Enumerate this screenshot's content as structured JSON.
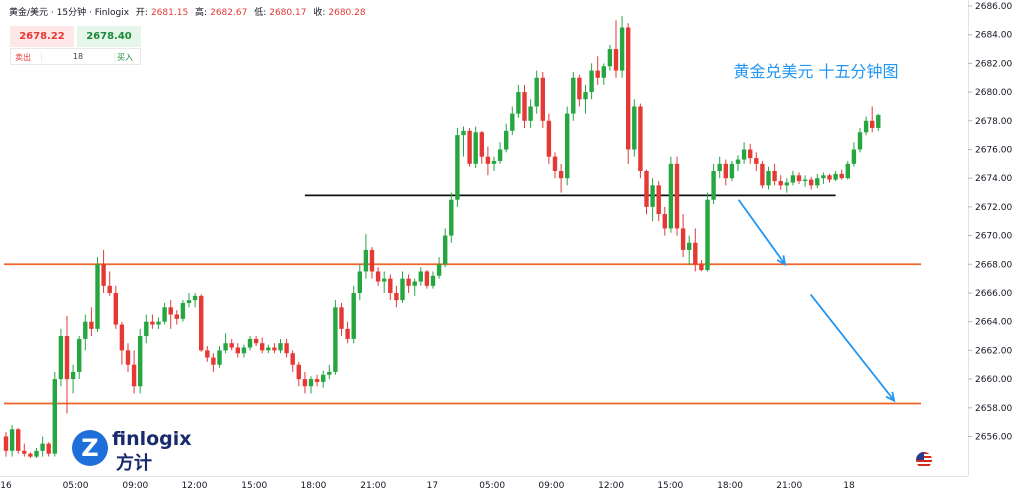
{
  "header": {
    "symbol": "黄金/美元",
    "sep1": "·",
    "timeframe": "15分钟",
    "sep2": "·",
    "source": "Finlogix",
    "open_label": "开:",
    "open": "2681.15",
    "high_label": "高:",
    "high": "2682.67",
    "low_label": "低:",
    "low": "2680.17",
    "close_label": "收:",
    "close": "2680.28"
  },
  "trade": {
    "sell_price": "2678.22",
    "buy_price": "2678.40",
    "sell_label": "卖出",
    "buy_label": "买入",
    "quantity": "18"
  },
  "logo": {
    "brand": "finlogix",
    "brand_cn": "方计",
    "mark": "Z"
  },
  "colors": {
    "up": "#26a641",
    "down": "#e53935",
    "support": "#f0642a",
    "pivot": "#111111",
    "arrow": "#2196f3",
    "annotation": "#2196f3"
  },
  "chart_data": {
    "type": "candlestick",
    "title": "",
    "annotation": "黄金兑美元 十五分钟图",
    "y_axis": {
      "min": 2654.5,
      "max": 2686.0,
      "ticks": [
        "2686.00",
        "2684.00",
        "2682.00",
        "2680.00",
        "2678.00",
        "2676.00",
        "2674.00",
        "2672.00",
        "2670.00",
        "2668.00",
        "2666.00",
        "2664.00",
        "2662.00",
        "2660.00",
        "2658.00",
        "2656.00"
      ],
      "tick_values": [
        2686,
        2684,
        2682,
        2680,
        2678,
        2676,
        2674,
        2672,
        2670,
        2668,
        2666,
        2664,
        2662,
        2660,
        2658,
        2656
      ]
    },
    "x_axis": {
      "ticks": [
        "16",
        "05:00",
        "09:00",
        "12:00",
        "15:00",
        "18:00",
        "21:00",
        "17",
        "05:00",
        "09:00",
        "12:00",
        "15:00",
        "18:00",
        "21:00",
        "18"
      ],
      "tick_bars": [
        0,
        11.4,
        21.2,
        30.9,
        40.7,
        50.4,
        60.2,
        69.9,
        79.7,
        89.4,
        99.2,
        108.9,
        118.7,
        128.4,
        138.2
      ]
    },
    "horizontal_lines": [
      {
        "name": "pivot",
        "price": 2672.8,
        "from_bar": 49,
        "to_bar": 136,
        "color": "#111111"
      },
      {
        "name": "resistance-support",
        "price": 2668.0,
        "from_bar": -2,
        "to_bar": 150,
        "color": "#f0642a"
      },
      {
        "name": "lower-support",
        "price": 2658.3,
        "from_bar": -2,
        "to_bar": 150,
        "color": "#f0642a"
      }
    ],
    "arrows": [
      {
        "from_bar": 120.1,
        "from_price": 2672.5,
        "to_bar": 127.7,
        "to_price": 2668.0
      },
      {
        "from_bar": 131.9,
        "from_price": 2665.9,
        "to_bar": 145.6,
        "to_price": 2658.5
      }
    ],
    "candles": [
      [
        2656,
        2656.3,
        2654.6,
        2655
      ],
      [
        2655,
        2656.8,
        2654.6,
        2656.5
      ],
      [
        2656.5,
        2656.6,
        2654.8,
        2655
      ],
      [
        2655,
        2655.5,
        2654.6,
        2654.8
      ],
      [
        2654.8,
        2654.9,
        2654.5,
        2654.6
      ],
      [
        2654.6,
        2655.2,
        2654.5,
        2655
      ],
      [
        2655,
        2656,
        2654.6,
        2655.5
      ],
      [
        2655.5,
        2655.6,
        2654.6,
        2654.8
      ],
      [
        2654.8,
        2660.5,
        2654.6,
        2660
      ],
      [
        2660,
        2663.5,
        2659.5,
        2663
      ],
      [
        2663,
        2664.4,
        2657.6,
        2660
      ],
      [
        2660,
        2661,
        2659,
        2660.5
      ],
      [
        2660.5,
        2663,
        2660,
        2662.8
      ],
      [
        2662.8,
        2664.5,
        2662,
        2664
      ],
      [
        2664,
        2665,
        2663,
        2663.5
      ],
      [
        2663.5,
        2668.5,
        2663.3,
        2668
      ],
      [
        2668,
        2669,
        2666,
        2666.5
      ],
      [
        2666.5,
        2667.5,
        2665.8,
        2666
      ],
      [
        2666,
        2666.5,
        2663.5,
        2663.8
      ],
      [
        2663.8,
        2664,
        2661,
        2662
      ],
      [
        2662,
        2662.5,
        2660.5,
        2661
      ],
      [
        2661,
        2662,
        2659,
        2659.5
      ],
      [
        2659.5,
        2663.5,
        2659,
        2663
      ],
      [
        2663,
        2664.5,
        2662.5,
        2664
      ],
      [
        2664,
        2664.5,
        2663.5,
        2663.8
      ],
      [
        2663.8,
        2664.3,
        2663.5,
        2664
      ],
      [
        2664,
        2665.3,
        2663.8,
        2665
      ],
      [
        2665,
        2665.5,
        2663.5,
        2664.5
      ],
      [
        2664.5,
        2664.8,
        2663.8,
        2664.2
      ],
      [
        2664.2,
        2665.5,
        2664,
        2665.3
      ],
      [
        2665.3,
        2666,
        2665,
        2665.5
      ],
      [
        2665.5,
        2666,
        2665,
        2665.8
      ],
      [
        2665.8,
        2665.9,
        2661.9,
        2662
      ],
      [
        2662,
        2662.3,
        2661.2,
        2661.5
      ],
      [
        2661.5,
        2661.8,
        2660.5,
        2661
      ],
      [
        2661,
        2662.3,
        2660.8,
        2662
      ],
      [
        2662,
        2663.2,
        2661.8,
        2662.5
      ],
      [
        2662.5,
        2662.8,
        2662,
        2662.2
      ],
      [
        2662.2,
        2662.5,
        2661.5,
        2661.8
      ],
      [
        2661.8,
        2662.4,
        2661.5,
        2662.2
      ],
      [
        2662.2,
        2663,
        2662,
        2662.8
      ],
      [
        2662.8,
        2663,
        2662.3,
        2662.5
      ],
      [
        2662.5,
        2662.9,
        2661.8,
        2662
      ],
      [
        2662,
        2662.4,
        2661.8,
        2662.2
      ],
      [
        2662.2,
        2662.5,
        2661.8,
        2662
      ],
      [
        2662,
        2662.8,
        2661.8,
        2662.5
      ],
      [
        2662.5,
        2662.8,
        2661.5,
        2661.8
      ],
      [
        2661.8,
        2662,
        2660.5,
        2661
      ],
      [
        2661,
        2661.2,
        2659.5,
        2660
      ],
      [
        2660,
        2660.5,
        2659,
        2659.5
      ],
      [
        2659.5,
        2660.2,
        2659,
        2660
      ],
      [
        2660,
        2660.3,
        2659.5,
        2659.8
      ],
      [
        2659.8,
        2660.6,
        2659.4,
        2660.3
      ],
      [
        2660.3,
        2661,
        2660,
        2660.5
      ],
      [
        2660.5,
        2665.5,
        2660.3,
        2665
      ],
      [
        2665,
        2665.3,
        2663,
        2663.5
      ],
      [
        2663.5,
        2664,
        2662.5,
        2662.8
      ],
      [
        2662.8,
        2666.5,
        2662.5,
        2666
      ],
      [
        2666,
        2668,
        2665.5,
        2667.5
      ],
      [
        2667.5,
        2670.1,
        2667,
        2669
      ],
      [
        2669,
        2669.2,
        2667,
        2667.5
      ],
      [
        2667.5,
        2667.8,
        2666.5,
        2666.8
      ],
      [
        2666.8,
        2667.5,
        2666,
        2667
      ],
      [
        2667,
        2667.3,
        2665.5,
        2666
      ],
      [
        2666,
        2666.5,
        2665,
        2665.5
      ],
      [
        2665.5,
        2667.5,
        2665.3,
        2667
      ],
      [
        2667,
        2667.3,
        2666,
        2666.5
      ],
      [
        2666.5,
        2667,
        2665.8,
        2666.8
      ],
      [
        2666.8,
        2667.8,
        2666.5,
        2667.5
      ],
      [
        2667.5,
        2667.6,
        2666.3,
        2666.5
      ],
      [
        2666.5,
        2667.5,
        2666.3,
        2667.2
      ],
      [
        2667.2,
        2668.5,
        2667,
        2668
      ],
      [
        2668,
        2670.5,
        2667.8,
        2670
      ],
      [
        2670,
        2673,
        2669.5,
        2672.5
      ],
      [
        2672.5,
        2677.5,
        2672,
        2677
      ],
      [
        2677,
        2677.6,
        2675.5,
        2677.3
      ],
      [
        2677.3,
        2677.5,
        2674.8,
        2675
      ],
      [
        2675,
        2677.6,
        2674.7,
        2677.2
      ],
      [
        2677.2,
        2677.3,
        2675,
        2675.5
      ],
      [
        2675.5,
        2676.2,
        2674.2,
        2675
      ],
      [
        2675,
        2675.5,
        2674.5,
        2675.2
      ],
      [
        2675.2,
        2676.5,
        2675,
        2676
      ],
      [
        2676,
        2677.8,
        2675.8,
        2677.3
      ],
      [
        2677.3,
        2679,
        2677,
        2678.5
      ],
      [
        2678.5,
        2680.5,
        2678.2,
        2680
      ],
      [
        2680,
        2680.5,
        2677.5,
        2678
      ],
      [
        2678,
        2679.5,
        2677.5,
        2679
      ],
      [
        2679,
        2681.5,
        2678.5,
        2681
      ],
      [
        2681,
        2681.4,
        2677.5,
        2678
      ],
      [
        2678,
        2678.5,
        2675,
        2675.5
      ],
      [
        2675.5,
        2675.8,
        2674,
        2674.5
      ],
      [
        2674.5,
        2675,
        2673,
        2674
      ],
      [
        2674,
        2679,
        2673.5,
        2678.5
      ],
      [
        2678.5,
        2681.4,
        2678,
        2681
      ],
      [
        2681,
        2681.2,
        2679,
        2679.5
      ],
      [
        2679.5,
        2680.5,
        2678.5,
        2680
      ],
      [
        2680,
        2682,
        2679.5,
        2681.5
      ],
      [
        2681.5,
        2682.5,
        2680.5,
        2681
      ],
      [
        2681,
        2682,
        2680.5,
        2681.8
      ],
      [
        2681.8,
        2683.3,
        2681.5,
        2683
      ],
      [
        2683,
        2685,
        2681,
        2681.5
      ],
      [
        2681.5,
        2685.3,
        2681,
        2684.5
      ],
      [
        2684.5,
        2684.8,
        2675,
        2676
      ],
      [
        2676,
        2679.5,
        2675.5,
        2679
      ],
      [
        2679,
        2679.2,
        2674,
        2674.5
      ],
      [
        2674.5,
        2674.6,
        2671.5,
        2672
      ],
      [
        2672,
        2674,
        2671,
        2673.5
      ],
      [
        2673.5,
        2673.8,
        2671,
        2671.5
      ],
      [
        2671.5,
        2672,
        2670,
        2670.5
      ],
      [
        2670.5,
        2675.5,
        2670.2,
        2675
      ],
      [
        2675,
        2675.5,
        2670,
        2670.5
      ],
      [
        2670.5,
        2671.5,
        2668.5,
        2669
      ],
      [
        2669,
        2670,
        2668,
        2669.5
      ],
      [
        2669.5,
        2670.5,
        2667.5,
        2668
      ],
      [
        2668,
        2668.3,
        2667.5,
        2667.6
      ],
      [
        2667.6,
        2673,
        2667.5,
        2672.5
      ],
      [
        2672.5,
        2675,
        2672.2,
        2674.5
      ],
      [
        2674.5,
        2675.5,
        2674,
        2675
      ],
      [
        2675,
        2675.3,
        2673.5,
        2674
      ],
      [
        2674,
        2675.2,
        2673.8,
        2675
      ],
      [
        2675,
        2675.6,
        2674.5,
        2675.3
      ],
      [
        2675.3,
        2676.5,
        2675,
        2676
      ],
      [
        2676,
        2676.4,
        2675,
        2675.4
      ],
      [
        2675.4,
        2675.8,
        2674.5,
        2675
      ],
      [
        2675,
        2675.2,
        2673.3,
        2673.5
      ],
      [
        2673.5,
        2674.8,
        2673.2,
        2674.5
      ],
      [
        2674.5,
        2675,
        2673.5,
        2673.8
      ],
      [
        2673.8,
        2674.2,
        2673.2,
        2673.5
      ],
      [
        2673.5,
        2674,
        2673,
        2673.7
      ],
      [
        2673.7,
        2674.5,
        2673.5,
        2674.2
      ],
      [
        2674.2,
        2674.4,
        2673.6,
        2673.8
      ],
      [
        2673.8,
        2674.2,
        2673.4,
        2673.9
      ],
      [
        2673.9,
        2674.1,
        2673.2,
        2673.5
      ],
      [
        2673.5,
        2674.3,
        2673.3,
        2674
      ],
      [
        2674,
        2674.4,
        2673.6,
        2674.2
      ],
      [
        2674.2,
        2674.3,
        2673.7,
        2673.9
      ],
      [
        2673.9,
        2674.5,
        2673.8,
        2674.3
      ],
      [
        2674.3,
        2674.6,
        2673.9,
        2674
      ],
      [
        2674,
        2675.2,
        2673.9,
        2675
      ],
      [
        2675,
        2676.5,
        2674.8,
        2676
      ],
      [
        2676,
        2677.5,
        2675.8,
        2677.2
      ],
      [
        2677.2,
        2678.3,
        2677,
        2678
      ],
      [
        2678,
        2679,
        2677.2,
        2677.5
      ],
      [
        2677.5,
        2678.5,
        2677.3,
        2678.4
      ]
    ]
  }
}
